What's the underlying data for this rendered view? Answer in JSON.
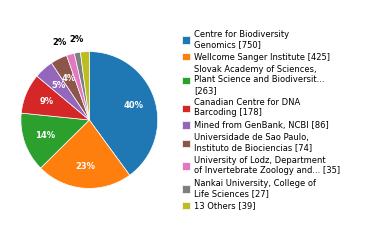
{
  "chart_data": {
    "type": "pie",
    "categories": [
      "Centre for Biodiversity\nGenomics [750]",
      "Wellcome Sanger Institute [425]",
      "Slovak Academy of Sciences,\nPlant Science and Biodiversit...\n[263]",
      "Canadian Centre for DNA\nBarcoding [178]",
      "Mined from GenBank, NCBI [86]",
      "Universidade de Sao Paulo,\nInstituto de Biociencias [74]",
      "University of Lodz, Department\nof Invertebrate Zoology and... [35]",
      "Nankai University, College of\nLife Sciences [27]",
      "13 Others [39]"
    ],
    "values": [
      750,
      425,
      263,
      178,
      86,
      74,
      35,
      27,
      39
    ],
    "percent_labels": [
      "40%",
      "23%",
      "14%",
      "9%",
      "5%",
      "4%",
      "2%",
      null,
      "2%"
    ],
    "legend": "right"
  }
}
